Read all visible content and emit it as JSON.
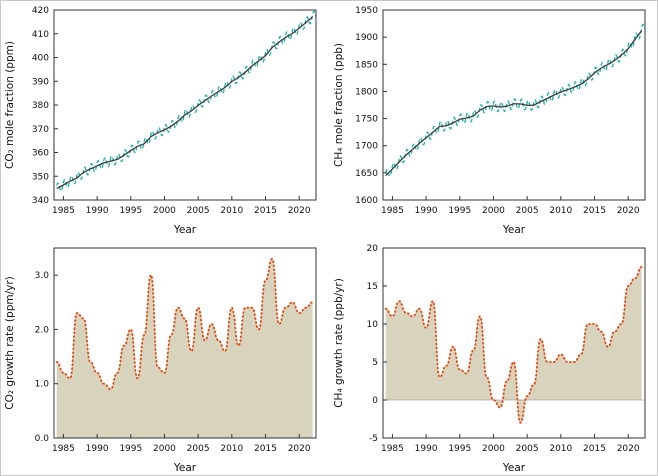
{
  "chart_data": [
    {
      "name": "co2-mole-fraction",
      "type": "line",
      "kind": "seasonal_trend",
      "title": "",
      "xlabel": "Year",
      "ylabel": "CO₂ mole fraction (ppm)",
      "xlim": [
        1983.6,
        2022.5
      ],
      "ylim": [
        340,
        420
      ],
      "xticks": [
        1985,
        1990,
        1995,
        2000,
        2005,
        2010,
        2015,
        2020
      ],
      "xtick_labels": [
        "1985",
        "1990",
        "1995",
        "2000",
        "2005",
        "2010",
        "2015",
        "2020"
      ],
      "yticks": [
        340,
        350,
        360,
        370,
        380,
        390,
        400,
        410,
        420
      ],
      "ytick_labels": [
        "340",
        "350",
        "360",
        "370",
        "380",
        "390",
        "400",
        "410",
        "420"
      ],
      "grid": false,
      "legend": [],
      "seasonal_amplitude": 2.0,
      "colors": {
        "seasonal": "#1fb0ab",
        "trend": "#3c3c3c"
      },
      "x": [
        1984,
        1985,
        1986,
        1987,
        1988,
        1989,
        1990,
        1991,
        1992,
        1993,
        1994,
        1995,
        1996,
        1997,
        1998,
        1999,
        2000,
        2001,
        2002,
        2003,
        2004,
        2005,
        2006,
        2007,
        2008,
        2009,
        2010,
        2011,
        2012,
        2013,
        2014,
        2015,
        2016,
        2017,
        2018,
        2019,
        2020,
        2021,
        2022
      ],
      "trend": [
        344.9,
        346.3,
        347.9,
        349.3,
        351.6,
        353.1,
        354.4,
        355.6,
        356.4,
        357.1,
        358.8,
        360.8,
        362.6,
        363.7,
        366.7,
        368.3,
        369.5,
        371.1,
        373.2,
        375.8,
        377.5,
        379.8,
        381.9,
        383.8,
        385.6,
        387.4,
        389.9,
        391.6,
        393.8,
        396.5,
        398.6,
        400.8,
        404.2,
        406.5,
        408.5,
        410.1,
        412.4,
        414.7,
        417.1
      ]
    },
    {
      "name": "ch4-mole-fraction",
      "type": "line",
      "kind": "seasonal_trend",
      "title": "",
      "xlabel": "Year",
      "ylabel": "CH₄ mole fraction (ppb)",
      "xlim": [
        1983.6,
        2022.5
      ],
      "ylim": [
        1600,
        1950
      ],
      "xticks": [
        1985,
        1990,
        1995,
        2000,
        2005,
        2010,
        2015,
        2020
      ],
      "xtick_labels": [
        "1985",
        "1990",
        "1995",
        "2000",
        "2005",
        "2010",
        "2015",
        "2020"
      ],
      "yticks": [
        1600,
        1650,
        1700,
        1750,
        1800,
        1850,
        1900,
        1950
      ],
      "ytick_labels": [
        "1600",
        "1650",
        "1700",
        "1750",
        "1800",
        "1850",
        "1900",
        "1950"
      ],
      "grid": false,
      "legend": [],
      "seasonal_amplitude": 9,
      "colors": {
        "seasonal": "#1fb0ab",
        "trend": "#3c3c3c"
      },
      "x": [
        1984,
        1985,
        1986,
        1987,
        1988,
        1989,
        1990,
        1991,
        1992,
        1993,
        1994,
        1995,
        1996,
        1997,
        1998,
        1999,
        2000,
        2001,
        2002,
        2003,
        2004,
        2005,
        2006,
        2007,
        2008,
        2009,
        2010,
        2011,
        2012,
        2013,
        2014,
        2015,
        2016,
        2017,
        2018,
        2019,
        2020,
        2021,
        2022
      ],
      "trend": [
        1644.8,
        1657.3,
        1670.1,
        1682.7,
        1693.2,
        1704.5,
        1714.4,
        1724.8,
        1735.5,
        1736.5,
        1742.0,
        1748.9,
        1751.0,
        1754.4,
        1765.5,
        1772.3,
        1773.2,
        1771.1,
        1772.7,
        1777.3,
        1777.0,
        1774.2,
        1774.7,
        1781.4,
        1787.0,
        1793.5,
        1798.9,
        1803.1,
        1808.0,
        1813.3,
        1822.5,
        1834.2,
        1843.0,
        1849.7,
        1857.3,
        1866.6,
        1878.9,
        1895.3,
        1911.8
      ]
    },
    {
      "name": "co2-growth-rate",
      "type": "area",
      "kind": "growth_fill",
      "title": "",
      "xlabel": "Year",
      "ylabel": "CO₂ growth rate (ppm/yr)",
      "xlim": [
        1983.6,
        2022.5
      ],
      "ylim": [
        0,
        3.5
      ],
      "xticks": [
        1985,
        1990,
        1995,
        2000,
        2005,
        2010,
        2015,
        2020
      ],
      "xtick_labels": [
        "1985",
        "1990",
        "1995",
        "2000",
        "2005",
        "2010",
        "2015",
        "2020"
      ],
      "yticks": [
        0,
        1,
        2,
        3
      ],
      "ytick_labels": [
        "0.0",
        "1.0",
        "2.0",
        "3.0"
      ],
      "grid": false,
      "legend": [],
      "colors": {
        "fill": "#d7d3bd",
        "line": "#e0490f"
      },
      "x": [
        1984,
        1985,
        1986,
        1987,
        1988,
        1989,
        1990,
        1991,
        1992,
        1993,
        1994,
        1995,
        1996,
        1997,
        1998,
        1999,
        2000,
        2001,
        2002,
        2003,
        2004,
        2005,
        2006,
        2007,
        2008,
        2009,
        2010,
        2011,
        2012,
        2013,
        2014,
        2015,
        2016,
        2017,
        2018,
        2019,
        2020,
        2021,
        2022
      ],
      "values": [
        1.4,
        1.2,
        1.1,
        2.3,
        2.2,
        1.4,
        1.2,
        1.0,
        0.9,
        1.2,
        1.7,
        2.0,
        1.1,
        1.9,
        3.0,
        1.3,
        1.2,
        1.9,
        2.4,
        2.2,
        1.6,
        2.4,
        1.8,
        2.1,
        1.8,
        1.6,
        2.4,
        1.7,
        2.4,
        2.4,
        2.0,
        2.9,
        3.3,
        2.1,
        2.4,
        2.5,
        2.3,
        2.4,
        2.5
      ]
    },
    {
      "name": "ch4-growth-rate",
      "type": "area",
      "kind": "growth_fill",
      "title": "",
      "xlabel": "Year",
      "ylabel": "CH₄ growth rate (ppb/yr)",
      "xlim": [
        1983.6,
        2022.5
      ],
      "ylim": [
        -5,
        20
      ],
      "xticks": [
        1985,
        1990,
        1995,
        2000,
        2005,
        2010,
        2015,
        2020
      ],
      "xtick_labels": [
        "1985",
        "1990",
        "1995",
        "2000",
        "2005",
        "2010",
        "2015",
        "2020"
      ],
      "yticks": [
        -5,
        0,
        5,
        10,
        15,
        20
      ],
      "ytick_labels": [
        "-5",
        "0",
        "5",
        "10",
        "15",
        "20"
      ],
      "grid": false,
      "legend": [],
      "colors": {
        "fill": "#d7d3bd",
        "line": "#e0490f"
      },
      "x": [
        1984,
        1985,
        1986,
        1987,
        1988,
        1989,
        1990,
        1991,
        1992,
        1993,
        1994,
        1995,
        1996,
        1997,
        1998,
        1999,
        2000,
        2001,
        2002,
        2003,
        2004,
        2005,
        2006,
        2007,
        2008,
        2009,
        2010,
        2011,
        2012,
        2013,
        2014,
        2015,
        2016,
        2017,
        2018,
        2019,
        2020,
        2021,
        2022
      ],
      "values": [
        12.0,
        11.0,
        13.0,
        11.5,
        11.0,
        12.0,
        9.5,
        13.0,
        3.0,
        4.5,
        7.0,
        4.0,
        3.5,
        6.5,
        11.0,
        3.0,
        0.0,
        -1.0,
        2.5,
        5.0,
        -3.0,
        0.5,
        2.0,
        8.0,
        5.0,
        5.0,
        6.0,
        5.0,
        5.0,
        6.0,
        10.0,
        10.0,
        9.0,
        7.0,
        9.0,
        10.0,
        15.0,
        16.0,
        17.5
      ]
    }
  ]
}
